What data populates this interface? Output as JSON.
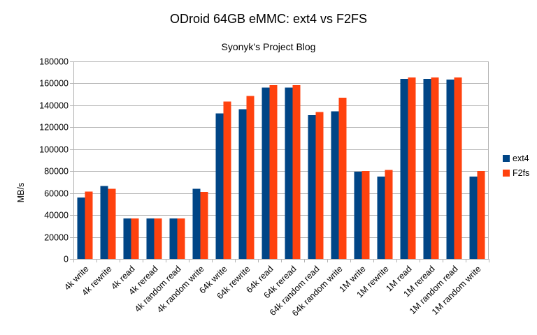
{
  "title": "ODroid 64GB eMMC: ext4 vs F2FS",
  "subtitle": "Syonyk's Project Blog",
  "chart_data": {
    "type": "bar",
    "title": "ODroid 64GB eMMC: ext4 vs F2FS",
    "subtitle": "Syonyk's Project Blog",
    "xlabel": "",
    "ylabel": "MB/s",
    "ylim": [
      0,
      180000
    ],
    "yticks": [
      0,
      20000,
      40000,
      60000,
      80000,
      100000,
      120000,
      140000,
      160000,
      180000
    ],
    "grid": true,
    "legend_position": "right",
    "categories": [
      "4k write",
      "4k rewrite",
      "4k read",
      "4k reread",
      "4k random read",
      "4k random write",
      "64k write",
      "64k rewrite",
      "64k read",
      "64k reread",
      "64k random read",
      "64k random write",
      "1M write",
      "1M rewrite",
      "1M read",
      "1M reread",
      "1M random read",
      "1M random write"
    ],
    "series": [
      {
        "name": "ext4",
        "color": "#004586",
        "values": [
          56000,
          66500,
          37000,
          37000,
          37000,
          64000,
          132500,
          136500,
          156000,
          156000,
          131000,
          134500,
          79500,
          75000,
          164000,
          164000,
          163500,
          75000
        ]
      },
      {
        "name": "F2fs",
        "color": "#FF420E",
        "values": [
          61500,
          64000,
          37000,
          37000,
          37000,
          61000,
          143500,
          148500,
          158500,
          158500,
          134000,
          147000,
          80000,
          81000,
          165500,
          165500,
          165500,
          80000
        ]
      }
    ],
    "axis_color": "#b3b3b3",
    "text_color": "#000000"
  }
}
